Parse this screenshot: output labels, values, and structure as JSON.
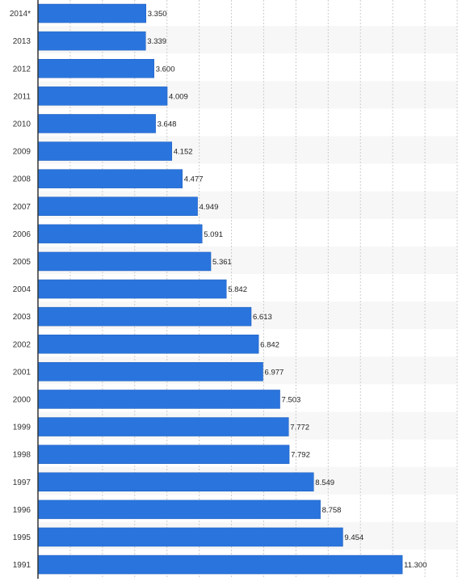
{
  "chart_data": {
    "type": "bar",
    "orientation": "horizontal",
    "title": "",
    "xlabel": "",
    "ylabel": "",
    "categories": [
      "2014*",
      "2013",
      "2012",
      "2011",
      "2010",
      "2009",
      "2008",
      "2007",
      "2006",
      "2005",
      "2004",
      "2003",
      "2002",
      "2001",
      "2000",
      "1999",
      "1998",
      "1997",
      "1996",
      "1995",
      "1991"
    ],
    "values": [
      3.35,
      3.339,
      3.6,
      4.009,
      3.648,
      4.152,
      4.477,
      4.949,
      5.091,
      5.361,
      5.842,
      6.613,
      6.842,
      6.977,
      7.503,
      7.772,
      7.792,
      8.549,
      8.758,
      9.454,
      11.3
    ],
    "value_labels": [
      "3.350",
      "3.339",
      "3.600",
      "4.009",
      "3.648",
      "4.152",
      "4.477",
      "4.949",
      "5.091",
      "5.361",
      "5.842",
      "6.613",
      "6.842",
      "6.977",
      "7.503",
      "7.772",
      "7.792",
      "8.549",
      "8.758",
      "9.454",
      "11.300"
    ],
    "xlim": [
      0,
      13
    ],
    "grid": true,
    "legend": "none",
    "colors": {
      "bar": "#2a74dd",
      "bar_edge": "#1f5fbd",
      "row_alt": "#f7f7f7",
      "grid": "#cccccc",
      "axis": "#333333"
    }
  }
}
